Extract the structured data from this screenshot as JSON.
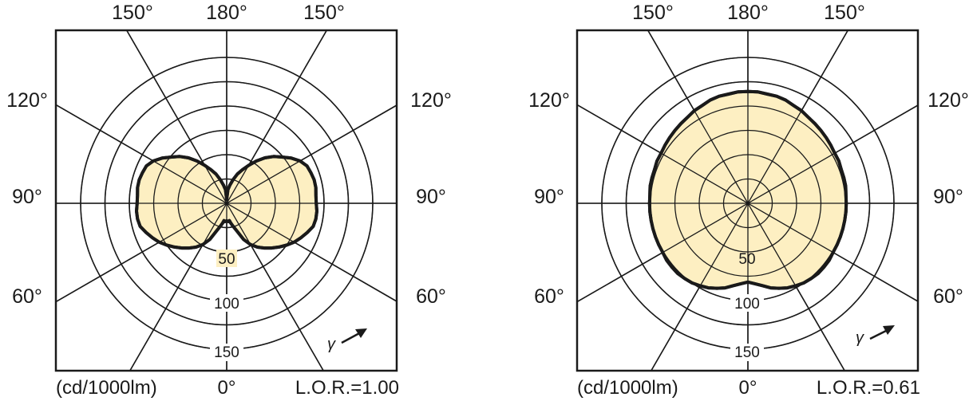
{
  "chart_data": [
    {
      "type": "polar",
      "unit_label": "(cd/1000lm)",
      "lor_label": "L.O.R.=1.00",
      "angle_labels": {
        "top_left": "150°",
        "top_center": "180°",
        "top_right": "150°",
        "upper_left": "120°",
        "upper_right": "120°",
        "mid_left": "90°",
        "mid_right": "90°",
        "lower_left": "60°",
        "lower_right": "60°",
        "bottom_center": "0°"
      },
      "ring_labels": [
        "50",
        "100",
        "150"
      ],
      "rings": [
        25,
        50,
        75,
        100,
        125,
        150
      ],
      "gamma_label": "γ",
      "curve": {
        "angles": [
          0,
          6,
          9,
          12,
          15,
          20,
          25,
          30,
          35,
          40,
          45,
          50,
          55,
          60,
          65,
          70,
          75,
          80,
          85,
          90,
          95,
          100,
          105,
          110,
          115,
          120,
          125,
          130,
          135,
          140,
          145,
          150,
          155,
          160,
          165,
          170,
          175,
          180
        ],
        "values": [
          18,
          19,
          18,
          21,
          24,
          30,
          41,
          49,
          55,
          60,
          65,
          70,
          75,
          80,
          84,
          88,
          92,
          93,
          93,
          92,
          92,
          93,
          93,
          92,
          91,
          87,
          81,
          74,
          68,
          61,
          53,
          45,
          38,
          32,
          25,
          19,
          14,
          4
        ]
      },
      "fill_color": "#fdefc2",
      "line_color": "#1a1a1a"
    },
    {
      "type": "polar",
      "unit_label": "(cd/1000lm)",
      "lor_label": "L.O.R.=0.61",
      "angle_labels": {
        "top_left": "150°",
        "top_center": "180°",
        "top_right": "150°",
        "upper_left": "120°",
        "upper_right": "120°",
        "mid_left": "90°",
        "mid_right": "90°",
        "lower_left": "60°",
        "lower_right": "60°",
        "bottom_center": "0°"
      },
      "ring_labels": [
        "50",
        "100",
        "150"
      ],
      "rings": [
        25,
        50,
        75,
        100,
        125,
        150
      ],
      "gamma_label": "γ",
      "curve": {
        "angles": [
          0,
          5,
          10,
          15,
          20,
          25,
          30,
          35,
          40,
          45,
          50,
          55,
          60,
          65,
          70,
          75,
          80,
          85,
          90,
          95,
          100,
          105,
          110,
          115,
          120,
          125,
          130,
          135,
          140,
          145,
          150,
          155,
          160,
          165,
          170,
          175,
          180
        ],
        "values": [
          81,
          83,
          86,
          90,
          93,
          96,
          98,
          100,
          101,
          102,
          102,
          102,
          101,
          101,
          101,
          101,
          101,
          101,
          101,
          101,
          102,
          102,
          102,
          103,
          103,
          104,
          105,
          106,
          107,
          108,
          110,
          111,
          113,
          114,
          114,
          115,
          115
        ]
      },
      "fill_color": "#fdefc2",
      "line_color": "#1a1a1a"
    }
  ]
}
